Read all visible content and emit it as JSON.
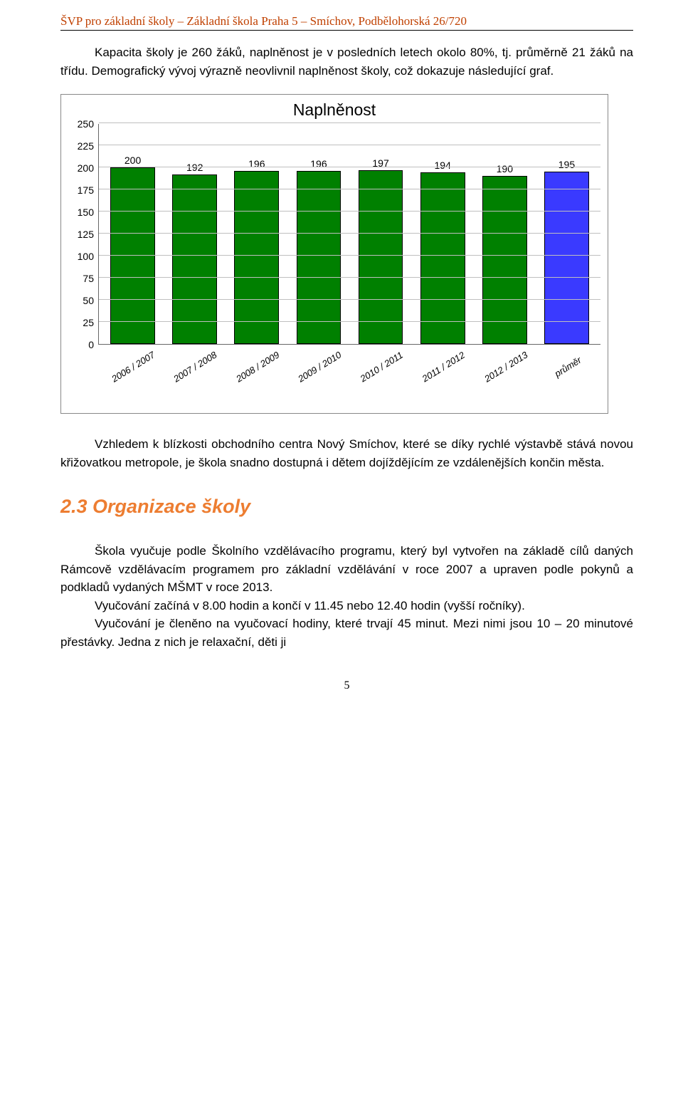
{
  "header": "ŠVP pro základní školy – Základní škola Praha 5 – Smíchov, Podbělohorská 26/720",
  "para1": "Kapacita školy je 260 žáků, naplněnost je v posledních letech okolo 80%, tj. průměrně 21 žáků na třídu. Demografický vývoj výrazně neovlivnil naplněnost školy, což dokazuje následující graf.",
  "chart": {
    "title": "Naplněnost",
    "title_fontsize": 23,
    "background_color": "#ffffff",
    "grid_color": "#bfbfbf",
    "axis_color": "#666666",
    "ylim": [
      0,
      250
    ],
    "ytick_step": 25,
    "yticks": [
      0,
      25,
      50,
      75,
      100,
      125,
      150,
      175,
      200,
      225,
      250
    ],
    "bar_width": 0.72,
    "label_fontsize": 14,
    "xlabel_fontsize": 13,
    "categories": [
      "2006 / 2007",
      "2007 / 2008",
      "2008 / 2009",
      "2009 / 2010",
      "2010 / 2011",
      "2011 / 2012",
      "2012 / 2013",
      "průměr"
    ],
    "values": [
      200,
      192,
      196,
      196,
      197,
      194,
      190,
      195
    ],
    "bar_colors": [
      "#008000",
      "#008000",
      "#008000",
      "#008000",
      "#008000",
      "#008000",
      "#008000",
      "#3a3aff"
    ],
    "bar_border_color": "#000000"
  },
  "para2": "Vzhledem k blízkosti obchodního centra Nový Smíchov, které se díky rychlé výstavbě stává novou křižovatkou metropole, je škola snadno dostupná i dětem dojíždějícím ze vzdálenějších končin města.",
  "section_heading": "2.3 Organizace školy",
  "para3_a": "Škola vyučuje podle Školního vzdělávacího programu, který byl vytvořen na základě cílů daných Rámcově vzdělávacím programem pro základní vzdělávání v roce 2007 a upraven podle pokynů a podkladů vydaných MŠMT v roce 2013.",
  "para3_b": "Vyučování začíná v 8.00 hodin a končí v 11.45 nebo 12.40 hodin (vyšší ročníky).",
  "para3_c": "Vyučování je členěno na vyučovací hodiny, které trvají 45 minut. Mezi nimi jsou 10 – 20 minutové přestávky. Jedna z nich je relaxační, děti ji",
  "page_number": "5",
  "colors": {
    "header_text": "#c04000",
    "heading_text": "#ed7d31",
    "body_text": "#000000"
  }
}
